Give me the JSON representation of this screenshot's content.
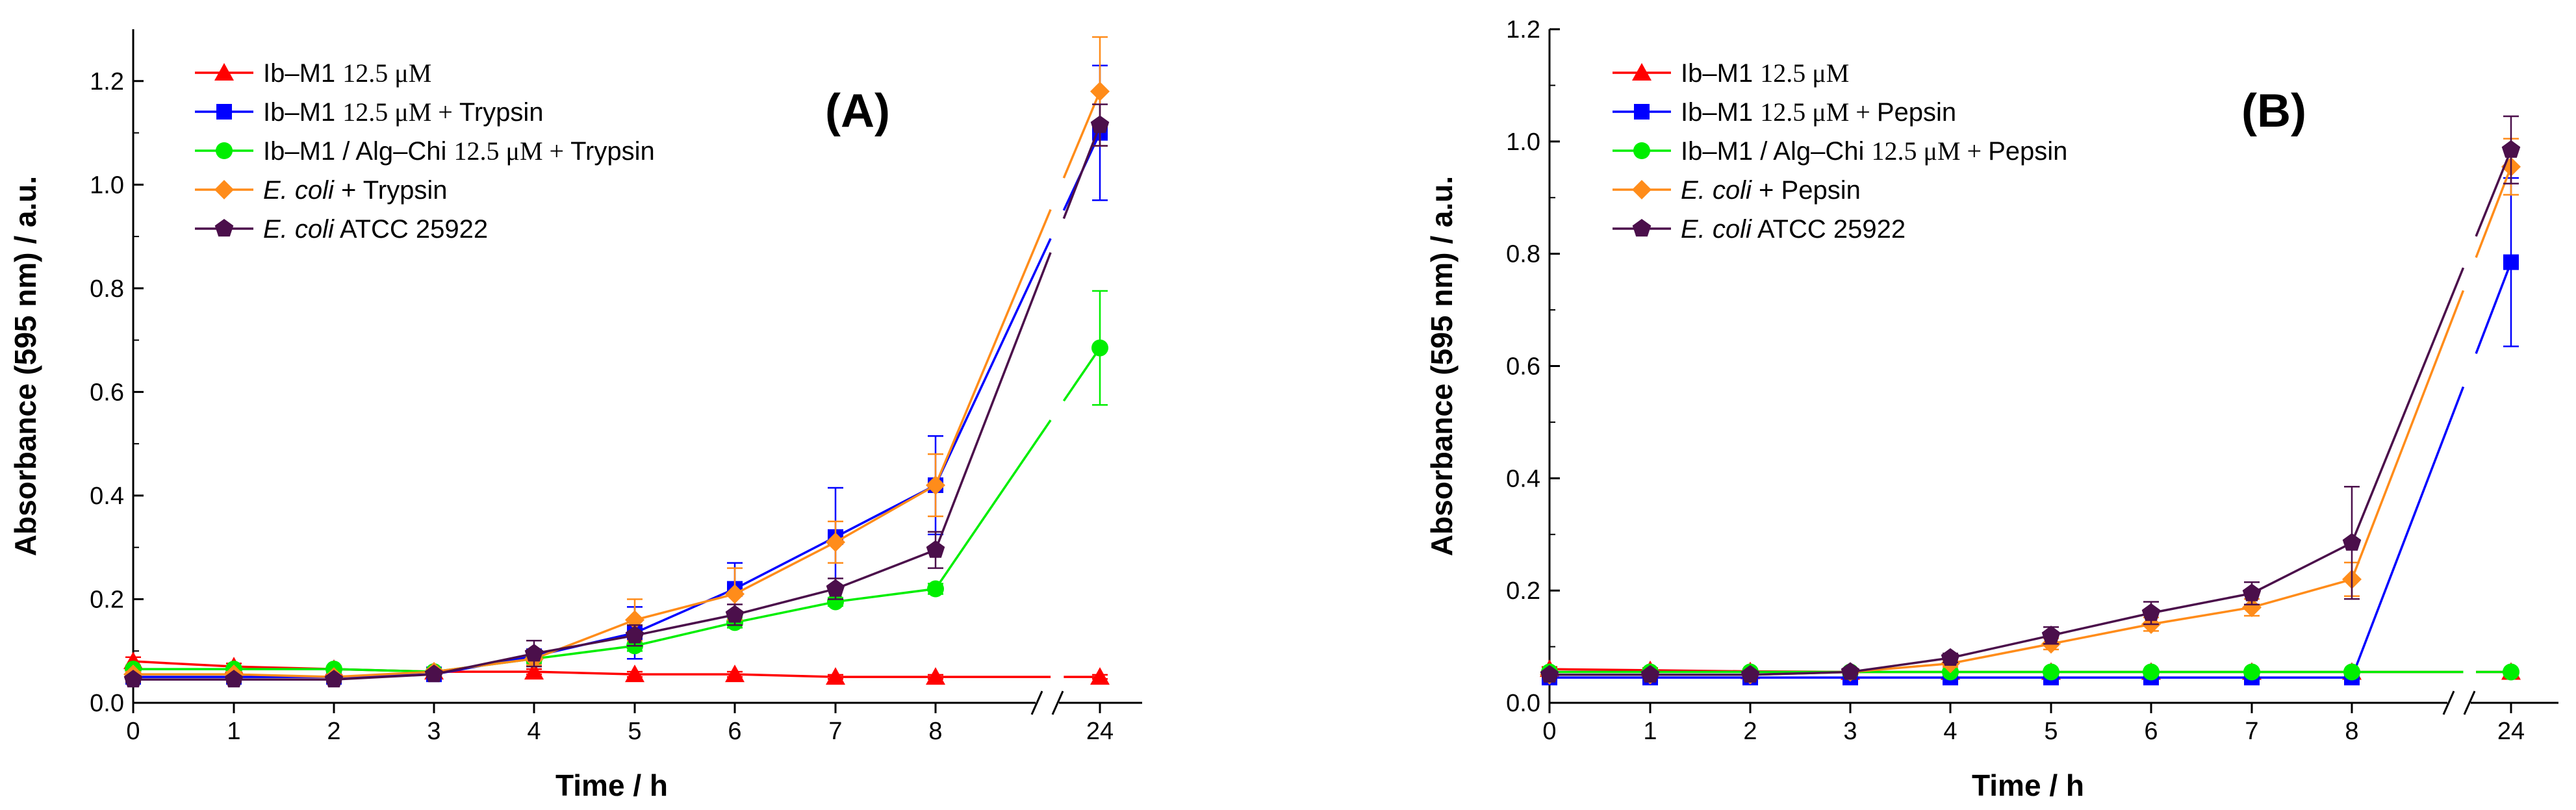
{
  "chart_data": [
    {
      "type": "line",
      "panel_label": "(A)",
      "xlabel": "Time / h",
      "ylabel": "Absorbance (595 nm) / a.u.",
      "x": [
        0,
        1,
        2,
        3,
        4,
        5,
        6,
        7,
        8,
        24
      ],
      "xtick_labels": [
        "0",
        "1",
        "2",
        "3",
        "4",
        "5",
        "6",
        "7",
        "8",
        "24"
      ],
      "x_axis_break": "between 8 and 24",
      "ylim": [
        0,
        1.3
      ],
      "yticks": [
        "0.0",
        "0.2",
        "0.4",
        "0.6",
        "0.8",
        "1.0",
        "1.2"
      ],
      "ytick_values": [
        0,
        0.2,
        0.4,
        0.6,
        0.8,
        1.0,
        1.2
      ],
      "legend_position": "top-left",
      "series": [
        {
          "name_parts": [
            {
              "t": "Ib–M1 ",
              "style": "sans"
            },
            {
              "t": "12.5 μM",
              "style": "serif"
            }
          ],
          "name": "Ib–M1 12.5 μM",
          "color": "#ff0000",
          "marker": "triangle",
          "values": [
            0.08,
            0.07,
            0.065,
            0.06,
            0.06,
            0.055,
            0.055,
            0.05,
            0.05,
            0.05
          ],
          "errors": [
            0.008,
            0.006,
            0.005,
            0.004,
            0.005,
            0.005,
            0.005,
            0.004,
            0.004,
            0.004
          ]
        },
        {
          "name_parts": [
            {
              "t": "Ib–M1 ",
              "style": "sans"
            },
            {
              "t": "12.5 μM + ",
              "style": "serif"
            },
            {
              "t": "Trypsin",
              "style": "sans"
            }
          ],
          "name": "Ib–M1 12.5 μM + Trypsin",
          "color": "#0000ff",
          "marker": "square",
          "values": [
            0.05,
            0.05,
            0.05,
            0.055,
            0.09,
            0.135,
            0.22,
            0.32,
            0.42,
            1.1
          ],
          "errors": [
            0.005,
            0.005,
            0.005,
            0.005,
            0.01,
            0.05,
            0.05,
            0.095,
            0.095,
            0.13
          ]
        },
        {
          "name_parts": [
            {
              "t": "Ib–M1 / Alg–Chi ",
              "style": "sans"
            },
            {
              "t": "12.5 μM + ",
              "style": "serif"
            },
            {
              "t": "Trypsin",
              "style": "sans"
            }
          ],
          "name": "Ib–M1 / Alg–Chi 12.5 μM + Trypsin",
          "color": "#00ee00",
          "marker": "circle",
          "values": [
            0.065,
            0.065,
            0.065,
            0.06,
            0.085,
            0.11,
            0.155,
            0.195,
            0.22,
            0.685
          ],
          "errors": [
            0.005,
            0.005,
            0.005,
            0.005,
            0.008,
            0.01,
            0.01,
            0.008,
            0.01,
            0.11
          ]
        },
        {
          "name_parts": [
            {
              "t": "E. coli",
              "style": "italic"
            },
            {
              "t": " + Trypsin",
              "style": "sans"
            }
          ],
          "name": "E. coli + Trypsin",
          "color": "#ff8c1a",
          "marker": "diamond",
          "values": [
            0.055,
            0.055,
            0.05,
            0.06,
            0.085,
            0.16,
            0.21,
            0.31,
            0.42,
            1.18
          ],
          "errors": [
            0.005,
            0.005,
            0.005,
            0.005,
            0.012,
            0.04,
            0.05,
            0.04,
            0.06,
            0.105
          ]
        },
        {
          "name_parts": [
            {
              "t": "E. coli",
              "style": "italic"
            },
            {
              "t": " ATCC 25922",
              "style": "sans"
            }
          ],
          "name": "E. coli ATCC 25922",
          "color": "#4b0f4b",
          "marker": "pentagon",
          "values": [
            0.045,
            0.045,
            0.045,
            0.055,
            0.095,
            0.13,
            0.17,
            0.22,
            0.295,
            1.115
          ],
          "errors": [
            0.005,
            0.005,
            0.005,
            0.005,
            0.025,
            0.02,
            0.02,
            0.02,
            0.035,
            0.04
          ]
        }
      ]
    },
    {
      "type": "line",
      "panel_label": "(B)",
      "xlabel": "Time / h",
      "ylabel": "Absorbance (595 nm) / a.u.",
      "x": [
        0,
        1,
        2,
        3,
        4,
        5,
        6,
        7,
        8,
        24
      ],
      "xtick_labels": [
        "0",
        "1",
        "2",
        "3",
        "4",
        "5",
        "6",
        "7",
        "8",
        "24"
      ],
      "x_axis_break": "between 8 and 24",
      "ylim": [
        0,
        1.2
      ],
      "yticks": [
        "0.0",
        "0.2",
        "0.4",
        "0.6",
        "0.8",
        "1.0",
        "1.2"
      ],
      "ytick_values": [
        0,
        0.2,
        0.4,
        0.6,
        0.8,
        1.0,
        1.2
      ],
      "legend_position": "top-left",
      "series": [
        {
          "name_parts": [
            {
              "t": "Ib–M1 ",
              "style": "sans"
            },
            {
              "t": "12.5 μM",
              "style": "serif"
            }
          ],
          "name": "Ib–M1 12.5 μM",
          "color": "#ff0000",
          "marker": "triangle",
          "values": [
            0.06,
            0.058,
            0.056,
            0.055,
            0.055,
            0.055,
            0.055,
            0.055,
            0.055,
            0.055
          ],
          "errors": [
            0.004,
            0.004,
            0.004,
            0.004,
            0.004,
            0.004,
            0.004,
            0.004,
            0.004,
            0.004
          ]
        },
        {
          "name_parts": [
            {
              "t": "Ib–M1 ",
              "style": "sans"
            },
            {
              "t": "12.5 μM + ",
              "style": "serif"
            },
            {
              "t": "Pepsin",
              "style": "sans"
            }
          ],
          "name": "Ib–M1 12.5 μM + Pepsin",
          "color": "#0000ff",
          "marker": "square",
          "values": [
            0.045,
            0.045,
            0.045,
            0.045,
            0.045,
            0.045,
            0.045,
            0.045,
            0.045,
            0.785
          ],
          "errors": [
            0.003,
            0.003,
            0.003,
            0.003,
            0.003,
            0.003,
            0.003,
            0.003,
            0.003,
            0.15
          ]
        },
        {
          "name_parts": [
            {
              "t": "Ib–M1 / Alg–Chi ",
              "style": "sans"
            },
            {
              "t": "12.5 μM + ",
              "style": "serif"
            },
            {
              "t": "Pepsin",
              "style": "sans"
            }
          ],
          "name": "Ib–M1 / Alg–Chi 12.5 μM + Pepsin",
          "color": "#00ee00",
          "marker": "circle",
          "values": [
            0.055,
            0.055,
            0.055,
            0.055,
            0.055,
            0.055,
            0.055,
            0.055,
            0.055,
            0.055
          ],
          "errors": [
            0.003,
            0.003,
            0.003,
            0.003,
            0.003,
            0.003,
            0.003,
            0.003,
            0.003,
            0.003
          ]
        },
        {
          "name_parts": [
            {
              "t": "E. coli",
              "style": "italic"
            },
            {
              "t": " + Pepsin",
              "style": "sans"
            }
          ],
          "name": "E. coli + Pepsin",
          "color": "#ff8c1a",
          "marker": "diamond",
          "values": [
            0.05,
            0.05,
            0.05,
            0.055,
            0.07,
            0.105,
            0.14,
            0.17,
            0.22,
            0.955
          ],
          "errors": [
            0.004,
            0.004,
            0.004,
            0.004,
            0.006,
            0.01,
            0.012,
            0.015,
            0.03,
            0.05
          ]
        },
        {
          "name_parts": [
            {
              "t": "E. coli",
              "style": "italic"
            },
            {
              "t": " ATCC 25922",
              "style": "sans"
            }
          ],
          "name": "E. coli ATCC 25922",
          "color": "#4b0f4b",
          "marker": "pentagon",
          "values": [
            0.05,
            0.05,
            0.05,
            0.055,
            0.08,
            0.12,
            0.16,
            0.195,
            0.285,
            0.985
          ],
          "errors": [
            0.004,
            0.004,
            0.004,
            0.004,
            0.008,
            0.015,
            0.02,
            0.02,
            0.1,
            0.06
          ]
        }
      ]
    }
  ]
}
